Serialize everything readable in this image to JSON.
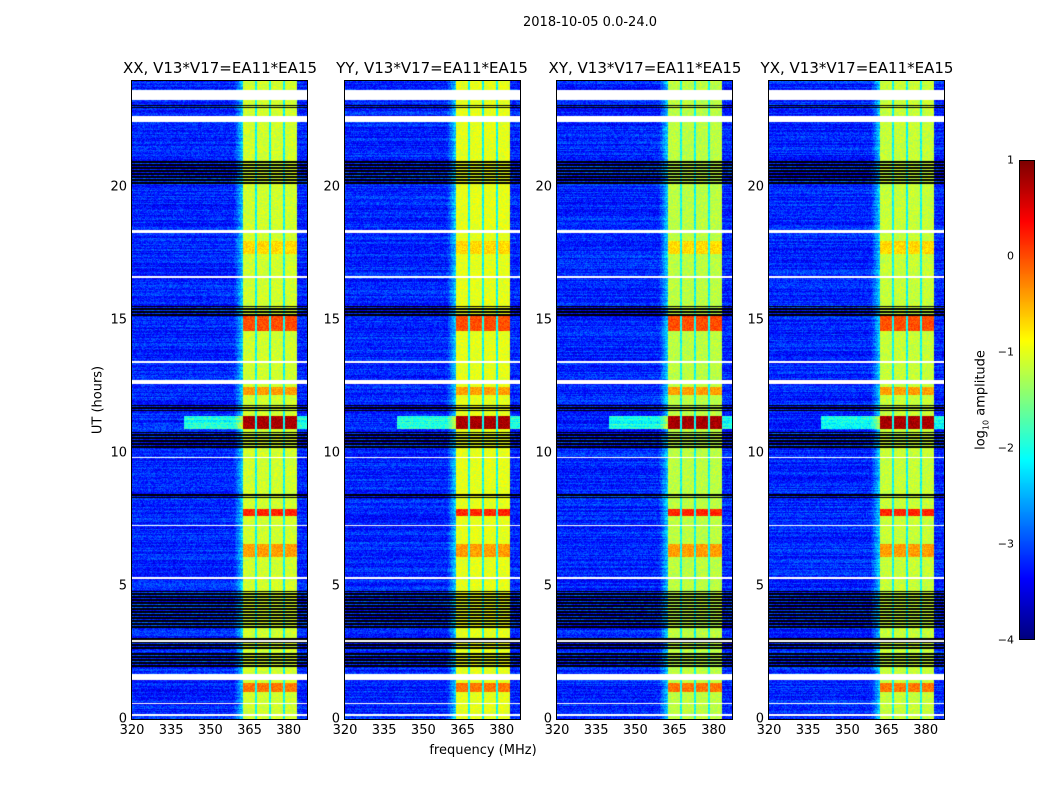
{
  "chart_data": {
    "type": "heatmap",
    "title": "2018-10-05 0.0-24.0",
    "xlabel": "frequency (MHz)",
    "ylabel": "UT (hours)",
    "xlim": [
      320,
      387
    ],
    "ylim": [
      0,
      24
    ],
    "xticks": [
      "320",
      "335",
      "350",
      "365",
      "380"
    ],
    "xtick_values": [
      320,
      335,
      350,
      365,
      380
    ],
    "yticks": [
      "0",
      "5",
      "10",
      "15",
      "20"
    ],
    "ytick_values": [
      0,
      5,
      10,
      15,
      20
    ],
    "panels": [
      {
        "title": "XX, V13*V17=EA11*EA15",
        "band_offset": 0
      },
      {
        "title": "YY, V13*V17=EA11*EA15",
        "band_offset": 0.1
      },
      {
        "title": "XY, V13*V17=EA11*EA15",
        "band_offset": -0.1
      },
      {
        "title": "YX, V13*V17=EA11*EA15",
        "band_offset": -0.05
      }
    ],
    "colorbar": {
      "label_prefix": "log",
      "label_sub": "10",
      "label_suffix": " amplitude",
      "range": [
        -4,
        1
      ],
      "ticks": [
        "−4",
        "−3",
        "−2",
        "−1",
        "0",
        "1"
      ],
      "tick_values": [
        -4,
        -3,
        -2,
        -1,
        0,
        1
      ],
      "colormap": "jet"
    },
    "background_log_amp": -3.2,
    "rfi_band_MHz": [
      362.5,
      383
    ],
    "rfi_subband_gaps_MHz": [
      367.5,
      372.8,
      378.1
    ],
    "rfi_band_default_log_amp": -1.1,
    "rfi_band_segments_hours": [
      {
        "t": [
          10.9,
          11.4
        ],
        "log_amp": 0.8
      },
      {
        "t": [
          7.65,
          7.9
        ],
        "log_amp": 0.2
      },
      {
        "t": [
          14.6,
          15.25
        ],
        "log_amp": 0.0
      },
      {
        "t": [
          1.0,
          1.35
        ],
        "log_amp": -0.2
      },
      {
        "t": [
          6.1,
          6.6
        ],
        "log_amp": -0.4
      },
      {
        "t": [
          12.2,
          12.5
        ],
        "log_amp": -0.4
      },
      {
        "t": [
          17.5,
          18.0
        ],
        "log_amp": -0.7
      }
    ],
    "flagged_blank_hours": [
      [
        23.3,
        23.65
      ],
      [
        22.45,
        22.7
      ],
      [
        12.6,
        12.75
      ],
      [
        5.25,
        5.35
      ],
      [
        1.45,
        1.7
      ],
      [
        0.55,
        0.62
      ],
      [
        0.1,
        0.18
      ],
      [
        18.3,
        18.38
      ],
      [
        16.6,
        16.65
      ],
      [
        13.4,
        13.48
      ],
      [
        9.8,
        9.86
      ],
      [
        7.25,
        7.3
      ],
      [
        2.9,
        2.98
      ]
    ],
    "flagged_black_hours": [
      [
        3.4,
        4.8
      ],
      [
        1.9,
        2.5
      ],
      [
        10.2,
        10.8
      ],
      [
        20.1,
        21.0
      ],
      [
        15.15,
        15.55
      ],
      [
        23.0,
        23.1
      ],
      [
        8.3,
        8.5
      ],
      [
        11.6,
        11.8
      ],
      [
        2.6,
        3.1
      ]
    ]
  }
}
